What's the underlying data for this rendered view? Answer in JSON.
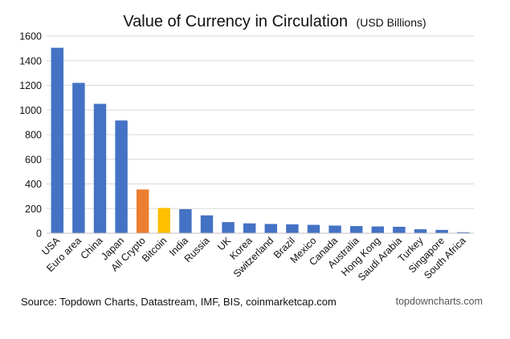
{
  "chart_data": {
    "type": "bar",
    "title": "Value of Currency in Circulation",
    "subtitle": "(USD Billions)",
    "xlabel": "",
    "ylabel": "",
    "ylim": [
      0,
      1600
    ],
    "yticks": [
      0,
      200,
      400,
      600,
      800,
      1000,
      1200,
      1400,
      1600
    ],
    "grid": true,
    "legend": "none",
    "categories": [
      "USA",
      "Euro area",
      "China",
      "Japan",
      "All Crypto",
      "Bitcoin",
      "India",
      "Russia",
      "UK",
      "Korea",
      "Switzerland",
      "Brazil",
      "Mexico",
      "Canada",
      "Australia",
      "Hong Kong",
      "Saudi Arabia",
      "Turkey",
      "Singapore",
      "South Africa"
    ],
    "values": [
      1505,
      1220,
      1050,
      915,
      355,
      205,
      195,
      145,
      90,
      80,
      75,
      72,
      68,
      62,
      58,
      55,
      52,
      32,
      27,
      8
    ],
    "colors": {
      "default": "#4472c4",
      "All Crypto": "#ed7d31",
      "Bitcoin": "#ffc000"
    }
  },
  "footer": {
    "source": "Source: Topdown Charts, Datastream, IMF, BIS, coinmarketcap.com",
    "credit": "topdowncharts.com"
  }
}
